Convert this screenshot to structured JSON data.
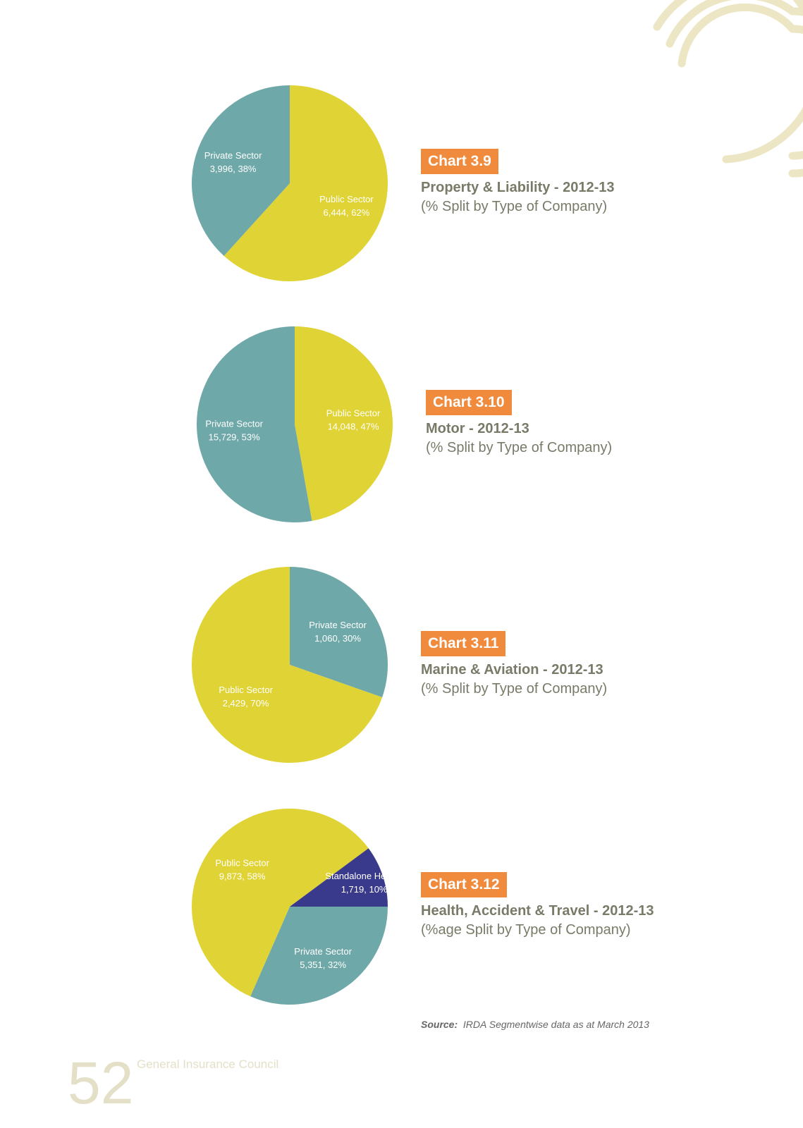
{
  "chart_data": [
    {
      "type": "pie",
      "badge": "Chart 3.9",
      "title": "Property & Liability - 2012-13",
      "subtitle": "(% Split by Type of Company)",
      "slices": [
        {
          "label": "Public Sector",
          "value": 6444,
          "display": "6,444, 62%",
          "percent": 62,
          "color": "#e0d335"
        },
        {
          "label": "Private Sector",
          "value": 3996,
          "display": "3,996, 38%",
          "percent": 38,
          "color": "#6fa8a8"
        }
      ]
    },
    {
      "type": "pie",
      "badge": "Chart 3.10",
      "title": "Motor - 2012-13",
      "subtitle": "(% Split by Type of Company)",
      "slices": [
        {
          "label": "Public Sector",
          "value": 14048,
          "display": "14,048, 47%",
          "percent": 47,
          "color": "#e0d335"
        },
        {
          "label": "Private Sector",
          "value": 15729,
          "display": "15,729, 53%",
          "percent": 53,
          "color": "#6fa8a8"
        }
      ]
    },
    {
      "type": "pie",
      "badge": "Chart 3.11",
      "title": "Marine & Aviation - 2012-13",
      "subtitle": "(% Split by Type of Company)",
      "slices": [
        {
          "label": "Private Sector",
          "value": 1060,
          "display": "1,060, 30%",
          "percent": 30,
          "color": "#6fa8a8"
        },
        {
          "label": "Public Sector",
          "value": 2429,
          "display": "2,429, 70%",
          "percent": 70,
          "color": "#e0d335"
        }
      ]
    },
    {
      "type": "pie",
      "badge": "Chart 3.12",
      "title": "Health, Accident & Travel - 2012-13",
      "subtitle": "(%age Split by Type of Company)",
      "slices": [
        {
          "label": "Private Sector",
          "value": 5351,
          "display": "5,351, 32%",
          "percent": 32,
          "color": "#6fa8a8"
        },
        {
          "label": "Public Sector",
          "value": 9873,
          "display": "9,873, 58%",
          "percent": 58,
          "color": "#e0d335"
        },
        {
          "label": "Standalone Health,",
          "value": 1719,
          "display": "1,719, 10%",
          "percent": 10,
          "color": "#3a3a8c"
        }
      ]
    }
  ],
  "source": {
    "label": "Source:",
    "text": "IRDA Segmentwise data as at March 2013"
  },
  "footer": {
    "page_number": "52",
    "organization": "General Insurance Council"
  }
}
